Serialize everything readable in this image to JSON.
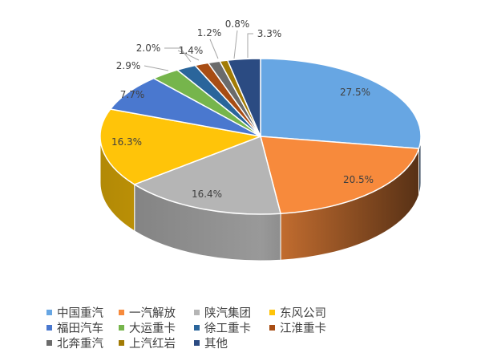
{
  "chart_data": {
    "type": "pie",
    "style": "3d",
    "title": "",
    "start_angle": "12 o'clock, clockwise",
    "legend_position": "bottom",
    "slices": [
      {
        "name": "中国重汽",
        "value": 27.5,
        "label": "27.5%",
        "color": "#67A6E3"
      },
      {
        "name": "一汽解放",
        "value": 20.5,
        "label": "20.5%",
        "color": "#F78A3C"
      },
      {
        "name": "陕汽集团",
        "value": 16.4,
        "label": "16.4%",
        "color": "#B5B5B5"
      },
      {
        "name": "东风公司",
        "value": 16.3,
        "label": "16.3%",
        "color": "#FFC409"
      },
      {
        "name": "福田汽车",
        "value": 7.7,
        "label": "7.7%",
        "color": "#4A78CF"
      },
      {
        "name": "大运重卡",
        "value": 2.9,
        "label": "2.9%",
        "color": "#76B54C"
      },
      {
        "name": "徐工重卡",
        "value": 2.0,
        "label": "2.0%",
        "color": "#2A659B"
      },
      {
        "name": "江淮重卡",
        "value": 1.4,
        "label": "1.4%",
        "color": "#A84D14"
      },
      {
        "name": "北奔重汽",
        "value": 1.2,
        "label": "1.2%",
        "color": "#6B6B6B"
      },
      {
        "name": "上汽红岩",
        "value": 0.8,
        "label": "0.8%",
        "color": "#A27B05"
      },
      {
        "name": "其他",
        "value": 3.3,
        "label": "3.3%",
        "color": "#2B4B82"
      }
    ]
  }
}
